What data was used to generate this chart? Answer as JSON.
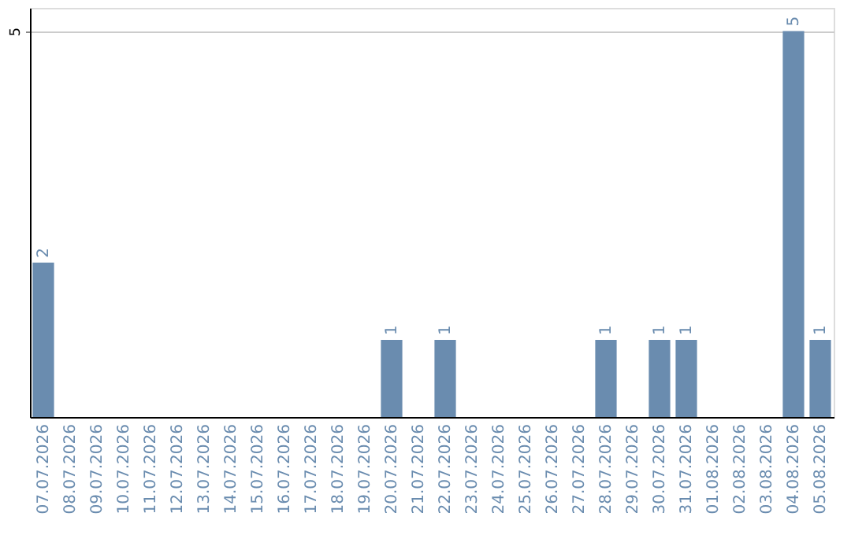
{
  "chart_data": {
    "type": "bar",
    "categories": [
      "07.07.2026",
      "08.07.2026",
      "09.07.2026",
      "10.07.2026",
      "11.07.2026",
      "12.07.2026",
      "13.07.2026",
      "14.07.2026",
      "15.07.2026",
      "16.07.2026",
      "17.07.2026",
      "18.07.2026",
      "19.07.2026",
      "20.07.2026",
      "21.07.2026",
      "22.07.2026",
      "23.07.2026",
      "24.07.2026",
      "25.07.2026",
      "26.07.2026",
      "27.07.2026",
      "28.07.2026",
      "29.07.2026",
      "30.07.2026",
      "31.07.2026",
      "01.08.2026",
      "02.08.2026",
      "03.08.2026",
      "04.08.2026",
      "05.08.2026"
    ],
    "values": [
      2,
      0,
      0,
      0,
      0,
      0,
      0,
      0,
      0,
      0,
      0,
      0,
      0,
      1,
      0,
      1,
      0,
      0,
      0,
      0,
      0,
      1,
      0,
      1,
      1,
      0,
      0,
      0,
      5,
      1
    ],
    "color": "#6a8caf",
    "value_labels": [
      "2",
      null,
      null,
      null,
      null,
      null,
      null,
      null,
      null,
      null,
      null,
      null,
      null,
      "1",
      null,
      "1",
      null,
      null,
      null,
      null,
      null,
      "1",
      null,
      "1",
      "1",
      null,
      null,
      null,
      "5",
      "1"
    ],
    "ylim": [
      0,
      5.3
    ],
    "yticks": [
      5
    ],
    "grid": "y"
  }
}
